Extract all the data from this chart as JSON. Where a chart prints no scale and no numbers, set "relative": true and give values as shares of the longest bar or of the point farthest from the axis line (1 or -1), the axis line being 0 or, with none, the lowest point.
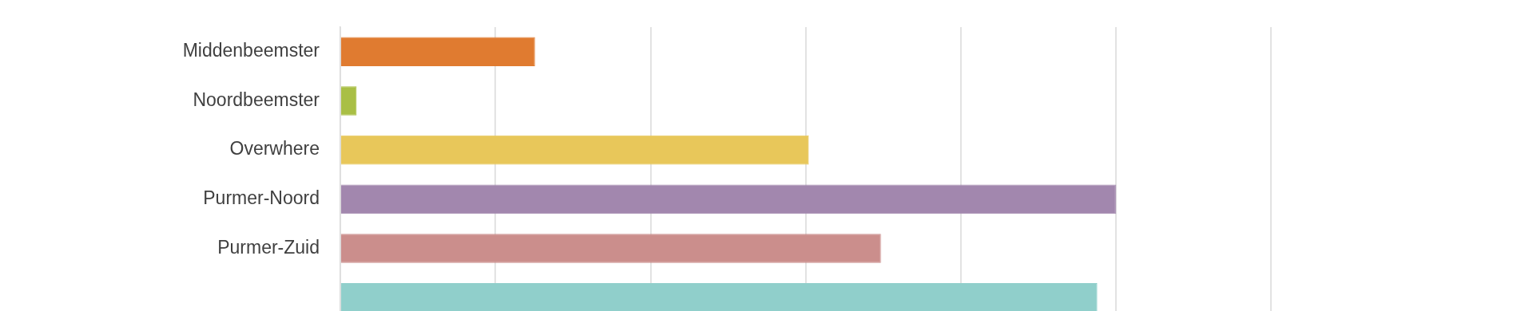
{
  "chart_data": {
    "type": "bar",
    "orientation": "horizontal",
    "relative": true,
    "grid": "x",
    "legend": false,
    "categories": [
      "Middenbeemster",
      "Noordbeemster",
      "Overwhere",
      "Purmer-Noord",
      "Purmer-Zuid",
      null
    ],
    "values": [
      0.251,
      0.021,
      0.604,
      1,
      0.697,
      0.976
    ],
    "colors": [
      "#e07b30",
      "#a9bf45",
      "#e8c75a",
      "#a287ae",
      "#cb8e8c",
      "#90cfcb"
    ]
  }
}
